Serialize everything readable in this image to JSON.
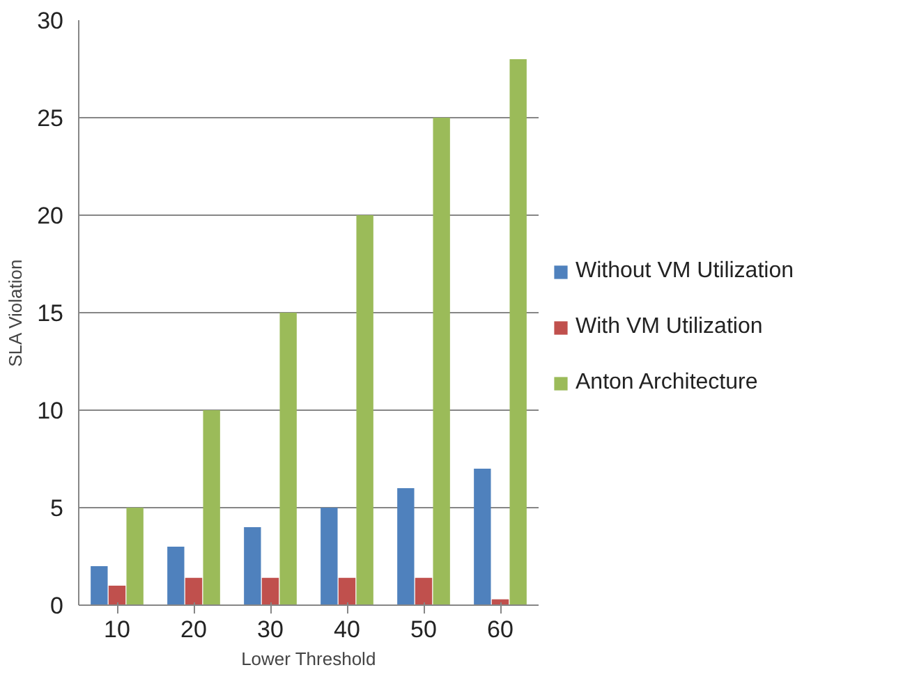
{
  "chart_data": {
    "type": "bar",
    "xlabel": "Lower Threshold",
    "ylabel": "SLA Violation",
    "categories": [
      "10",
      "20",
      "30",
      "40",
      "50",
      "60"
    ],
    "series": [
      {
        "name": "Without VM Utilization",
        "color": "#4f81bd",
        "values": [
          2,
          3,
          4,
          5,
          6,
          7
        ]
      },
      {
        "name": "With VM Utilization",
        "color": "#c0504d",
        "values": [
          1,
          1.4,
          1.4,
          1.4,
          1.4,
          0.3
        ]
      },
      {
        "name": "Anton Architecture",
        "color": "#9bbb59",
        "values": [
          5,
          10,
          15,
          20,
          25,
          28
        ]
      }
    ],
    "ylim": [
      0,
      30
    ],
    "yticks": [
      0,
      5,
      10,
      15,
      20,
      25,
      30
    ],
    "grid": "y",
    "legend": "right"
  }
}
